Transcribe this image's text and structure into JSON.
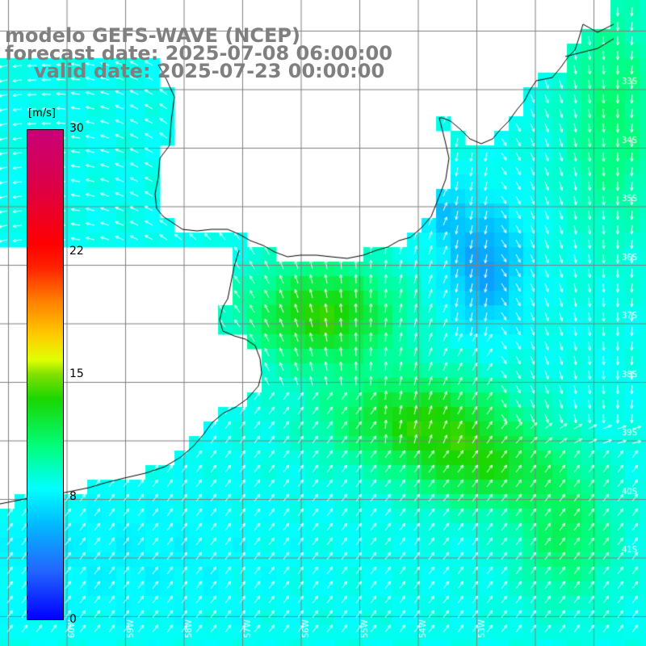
{
  "title": {
    "line1": "modelo GEFS-WAVE (NCEP)",
    "line2": "forecast date: 2025-07-08 06:00:00",
    "line3": "valid date: 2025-07-23 00:00:00"
  },
  "colorbar": {
    "units": "[m/s]",
    "ticks": [
      "30",
      "22",
      "15",
      "8",
      "0"
    ],
    "min": 0,
    "max": 30,
    "colors": [
      "#0000ff",
      "#00bfff",
      "#00ffff",
      "#1ad600",
      "#e0ff00",
      "#ff8000",
      "#ff0000",
      "#c80078"
    ]
  },
  "map": {
    "lat_labels": [
      "33S",
      "34S",
      "35S",
      "36S",
      "37S",
      "38S",
      "39S",
      "40S",
      "41S"
    ],
    "lon_labels": [
      "60W",
      "59W",
      "58W",
      "57W",
      "56W",
      "55W",
      "54W",
      "53W"
    ],
    "land_color": "#ffffff",
    "grid_color": "#808080",
    "coast_color": "#000000",
    "arrow_color": "#ffffff"
  }
}
